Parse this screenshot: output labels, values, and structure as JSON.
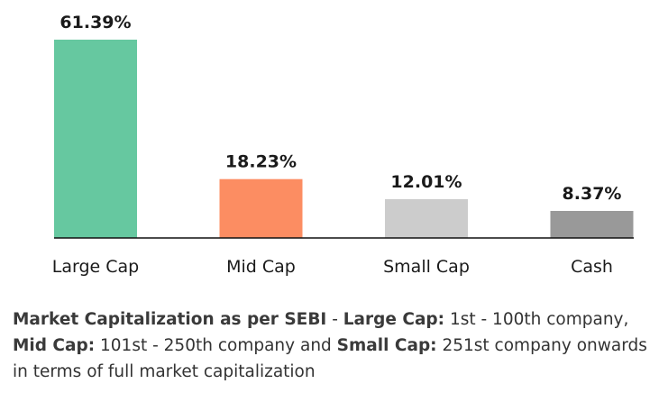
{
  "chart_data": {
    "type": "bar",
    "categories": [
      "Large Cap",
      "Mid Cap",
      "Small Cap",
      "Cash"
    ],
    "values": [
      61.39,
      18.23,
      12.01,
      8.37
    ],
    "value_labels": [
      "61.39%",
      "18.23%",
      "12.01%",
      "8.37%"
    ],
    "colors": [
      "#66c8a0",
      "#fc8d62",
      "#cccccc",
      "#999999"
    ],
    "ylim": [
      0,
      61.39
    ],
    "grid": false,
    "axis_line": "bottom-only"
  },
  "footnote": {
    "t1": "Market Capitalization as per SEBI",
    "t2": " - ",
    "t3": "Large Cap:",
    "t4": " 1st - 100th company, ",
    "t5": "Mid Cap:",
    "t6": " 101st - 250th company and ",
    "t7": "Small Cap:",
    "t8": " 251st company onwards in terms of full market capitalization"
  }
}
